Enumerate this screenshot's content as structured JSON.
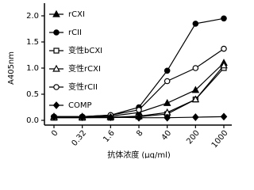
{
  "chart_data": {
    "type": "line",
    "x_label": "抗体浓度 (μg/ml)",
    "y_label": "A405nm",
    "categories": [
      "0",
      "0.32",
      "1.6",
      "8",
      "40",
      "200",
      "1000"
    ],
    "ylim": [
      0,
      2.0
    ],
    "yticks": [
      {
        "value": 0,
        "label": "0.0"
      },
      {
        "value": 0.5,
        "label": "0.5"
      },
      {
        "value": 1.0,
        "label": "1.0"
      },
      {
        "value": 1.5,
        "label": "1.5"
      },
      {
        "value": 2.0,
        "label": "2.0"
      }
    ],
    "series": [
      {
        "name": "rCXI",
        "color": "#000000",
        "marker": "triangle",
        "values": [
          0.07,
          0.07,
          0.08,
          0.15,
          0.33,
          0.58,
          1.1
        ]
      },
      {
        "name": "rCII",
        "color": "#000000",
        "marker": "circle",
        "values": [
          0.07,
          0.07,
          0.1,
          0.25,
          0.95,
          1.85,
          1.95
        ]
      },
      {
        "name": "变性bCXI",
        "color": "#000000",
        "marker": "square-open",
        "values": [
          0.05,
          0.05,
          0.05,
          0.07,
          0.12,
          0.4,
          1.0
        ]
      },
      {
        "name": "变性rCXI",
        "color": "#000000",
        "marker": "triangle-open",
        "values": [
          0.05,
          0.05,
          0.06,
          0.08,
          0.15,
          0.4,
          1.05
        ]
      },
      {
        "name": "变性rCII",
        "color": "#000000",
        "marker": "circle-open",
        "values": [
          0.07,
          0.07,
          0.1,
          0.2,
          0.75,
          1.0,
          1.37
        ]
      },
      {
        "name": "COMP",
        "color": "#000000",
        "marker": "diamond",
        "values": [
          0.07,
          0.06,
          0.06,
          0.05,
          0.05,
          0.06,
          0.07
        ]
      }
    ]
  }
}
